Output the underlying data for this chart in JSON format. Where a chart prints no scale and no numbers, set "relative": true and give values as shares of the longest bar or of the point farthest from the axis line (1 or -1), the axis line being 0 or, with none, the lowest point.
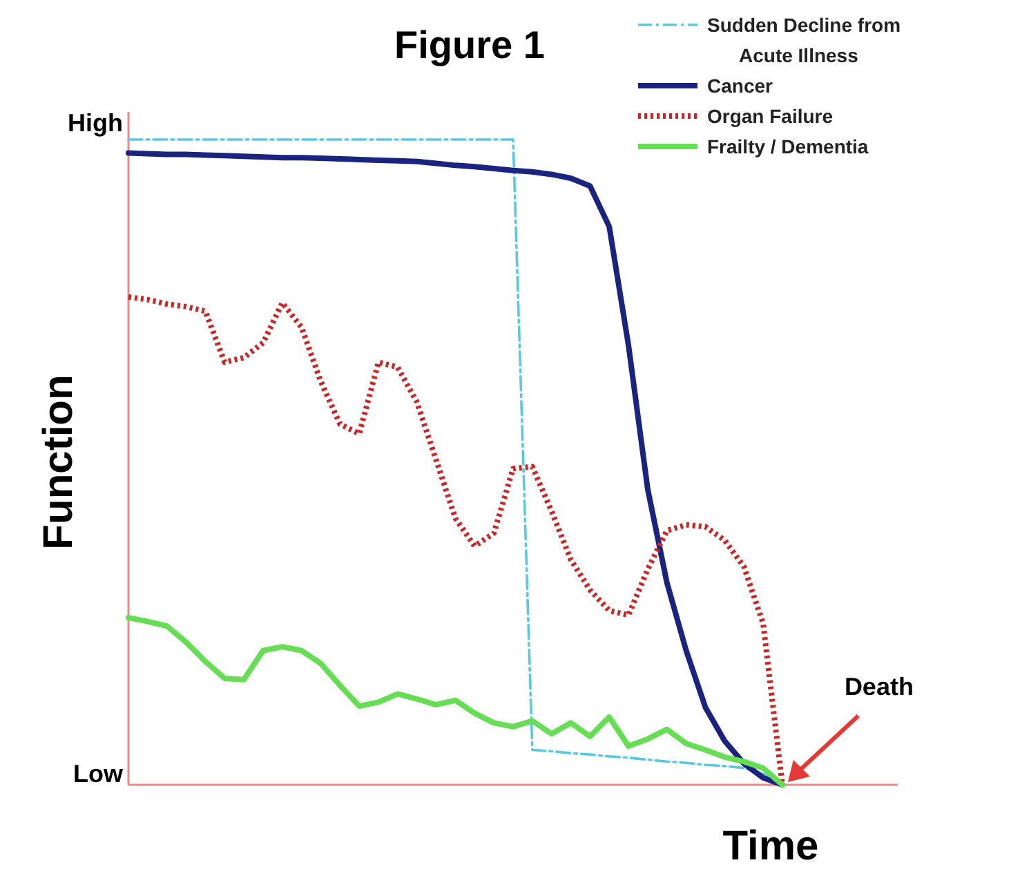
{
  "chart_data": {
    "type": "line",
    "title": "Figure 1",
    "xlabel": "Time",
    "ylabel": "Function",
    "relative": true,
    "legend": "top right",
    "grid": false,
    "categories": [
      null,
      null,
      null,
      null,
      null,
      null,
      null,
      null,
      null,
      null,
      null,
      null,
      null,
      null,
      null,
      null,
      null,
      null,
      null,
      null,
      null,
      null,
      null,
      null,
      null,
      null,
      null,
      null,
      null,
      null,
      null,
      null,
      null,
      null,
      null,
      null,
      null,
      null,
      null,
      null,
      null
    ],
    "annotations": [
      "High",
      "Low",
      "Death"
    ],
    "series": [
      {
        "name": "Sudden Decline from Acute Illness",
        "color": "#5bc8e0",
        "line_style": "dashed",
        "values": [
          1.0,
          1.0,
          1.0,
          1.0,
          1.0,
          1.0,
          1.0,
          1.0,
          1.0,
          1.0,
          1.0,
          1.0,
          1.0,
          1.0,
          1.0,
          1.0,
          1.0,
          1.0,
          1.0,
          1.0,
          1.0,
          0.054,
          0.052,
          0.049,
          0.047,
          0.044,
          0.042,
          0.039,
          0.036,
          0.034,
          0.031,
          0.029,
          0.026,
          0.017,
          0,
          null,
          null,
          null,
          null,
          null,
          null
        ]
      },
      {
        "name": "Cancer",
        "color": "#1a237e",
        "line_style": "solid",
        "values": [
          0.979,
          0.978,
          0.977,
          0.977,
          0.976,
          0.975,
          0.974,
          0.973,
          0.972,
          0.972,
          0.971,
          0.97,
          0.969,
          0.968,
          0.967,
          0.966,
          0.963,
          0.96,
          0.958,
          0.955,
          0.952,
          0.95,
          0.946,
          0.94,
          0.928,
          0.865,
          0.681,
          0.458,
          0.313,
          0.208,
          0.12,
          0.068,
          0.033,
          0.011,
          0,
          null,
          null,
          null,
          null,
          null,
          null
        ]
      },
      {
        "name": "Organ Failure",
        "color": "#c62828",
        "line_style": "dotted",
        "values": [
          0.756,
          0.752,
          0.745,
          0.741,
          0.734,
          0.655,
          0.662,
          0.685,
          0.747,
          0.709,
          0.625,
          0.559,
          0.544,
          0.655,
          0.647,
          0.593,
          0.503,
          0.413,
          0.37,
          0.39,
          0.49,
          0.493,
          0.424,
          0.349,
          0.302,
          0.27,
          0.263,
          0.334,
          0.394,
          0.403,
          0.4,
          0.379,
          0.338,
          0.25,
          0,
          null,
          null,
          null,
          null,
          null,
          null
        ]
      },
      {
        "name": "Frailty / Dementia",
        "color": "#66dd55",
        "line_style": "solid",
        "values": [
          0.259,
          0.253,
          0.246,
          0.221,
          0.191,
          0.165,
          0.163,
          0.208,
          0.214,
          0.208,
          0.188,
          0.154,
          0.122,
          0.128,
          0.141,
          0.133,
          0.124,
          0.131,
          0.111,
          0.096,
          0.09,
          0.099,
          0.079,
          0.096,
          0.075,
          0.105,
          0.06,
          0.071,
          0.086,
          0.064,
          0.054,
          0.043,
          0.036,
          0.026,
          0,
          null,
          null,
          null,
          null,
          null,
          null
        ]
      }
    ]
  }
}
